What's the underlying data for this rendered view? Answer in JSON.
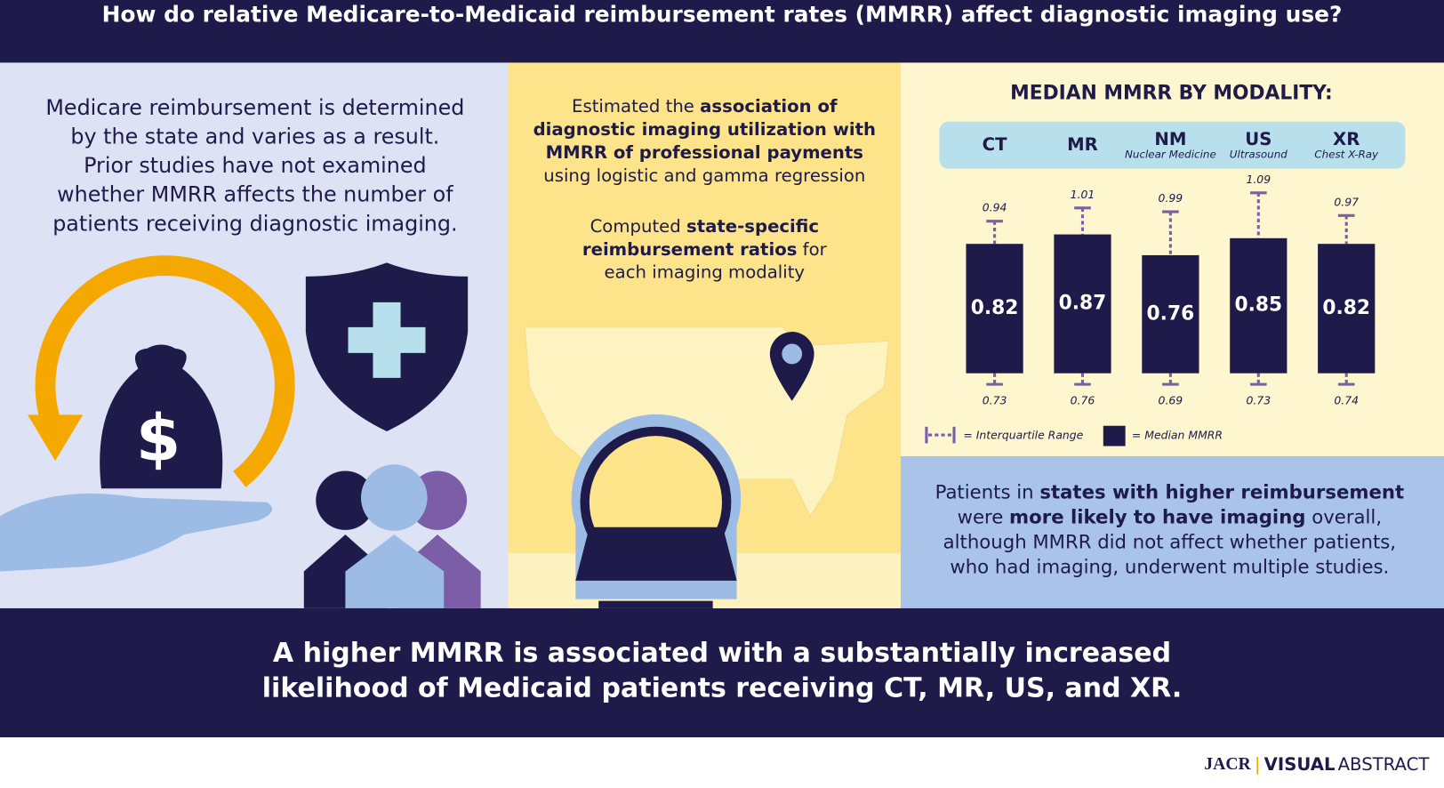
{
  "header": {
    "title": "How do relative Medicare-to-Medicaid reimbursement rates (MMRR) affect diagnostic imaging use?"
  },
  "left": {
    "lines": [
      "Medicare reimbursement is determined",
      "by the state and varies as a result.",
      "Prior studies have not examined",
      "whether MMRR affects the number of",
      "patients receiving diagnostic imaging."
    ]
  },
  "middle": {
    "paragraphs": [
      [
        [
          {
            "t": "Estimated the "
          },
          {
            "t": "association of",
            "b": true
          }
        ],
        [
          {
            "t": "diagnostic imaging utilization with",
            "b": true
          }
        ],
        [
          {
            "t": "MMRR of professional payments",
            "b": true
          }
        ],
        [
          {
            "t": "using logistic and gamma regression"
          }
        ]
      ],
      [
        [
          {
            "t": "Computed "
          },
          {
            "t": "state-specific",
            "b": true
          }
        ],
        [
          {
            "t": "reimbursement ratios",
            "b": true
          },
          {
            "t": " for"
          }
        ],
        [
          {
            "t": "each imaging modality"
          }
        ]
      ]
    ]
  },
  "chart": {
    "title": "MEDIAN MMRR BY MODALITY:",
    "categories": [
      "CT",
      "MR",
      "NM",
      "US",
      "XR"
    ],
    "subtitles": [
      null,
      null,
      "Nuclear Medicine",
      "Ultrasound",
      "Chest X-Ray"
    ],
    "medians": [
      0.82,
      0.87,
      0.76,
      0.85,
      0.82
    ],
    "q3": [
      0.94,
      1.01,
      0.99,
      1.09,
      0.97
    ],
    "q1": [
      0.73,
      0.76,
      0.69,
      0.73,
      0.74
    ],
    "legend": [
      "= Interquartile Range",
      "= Median MMRR"
    ],
    "color": "#1e1a4a",
    "whisker_color": "#7b5ea7"
  },
  "result": {
    "lines": [
      [
        {
          "t": "Patients in "
        },
        {
          "t": "states with higher reimbursement",
          "b": true
        }
      ],
      [
        {
          "t": "were "
        },
        {
          "t": "more likely to have imaging",
          "b": true
        },
        {
          "t": " overall,"
        }
      ],
      [
        {
          "t": "although MMRR did not affect whether patients,"
        }
      ],
      [
        {
          "t": "who had imaging, underwent multiple studies."
        }
      ]
    ]
  },
  "conclusion": {
    "lines": [
      "A higher MMRR is associated with a substantially increased",
      "likelihood of Medicaid patients receiving CT, MR, US, and XR."
    ]
  },
  "brand": {
    "journal": "JACR",
    "bold": "VISUAL",
    "light": "ABSTRACT"
  }
}
